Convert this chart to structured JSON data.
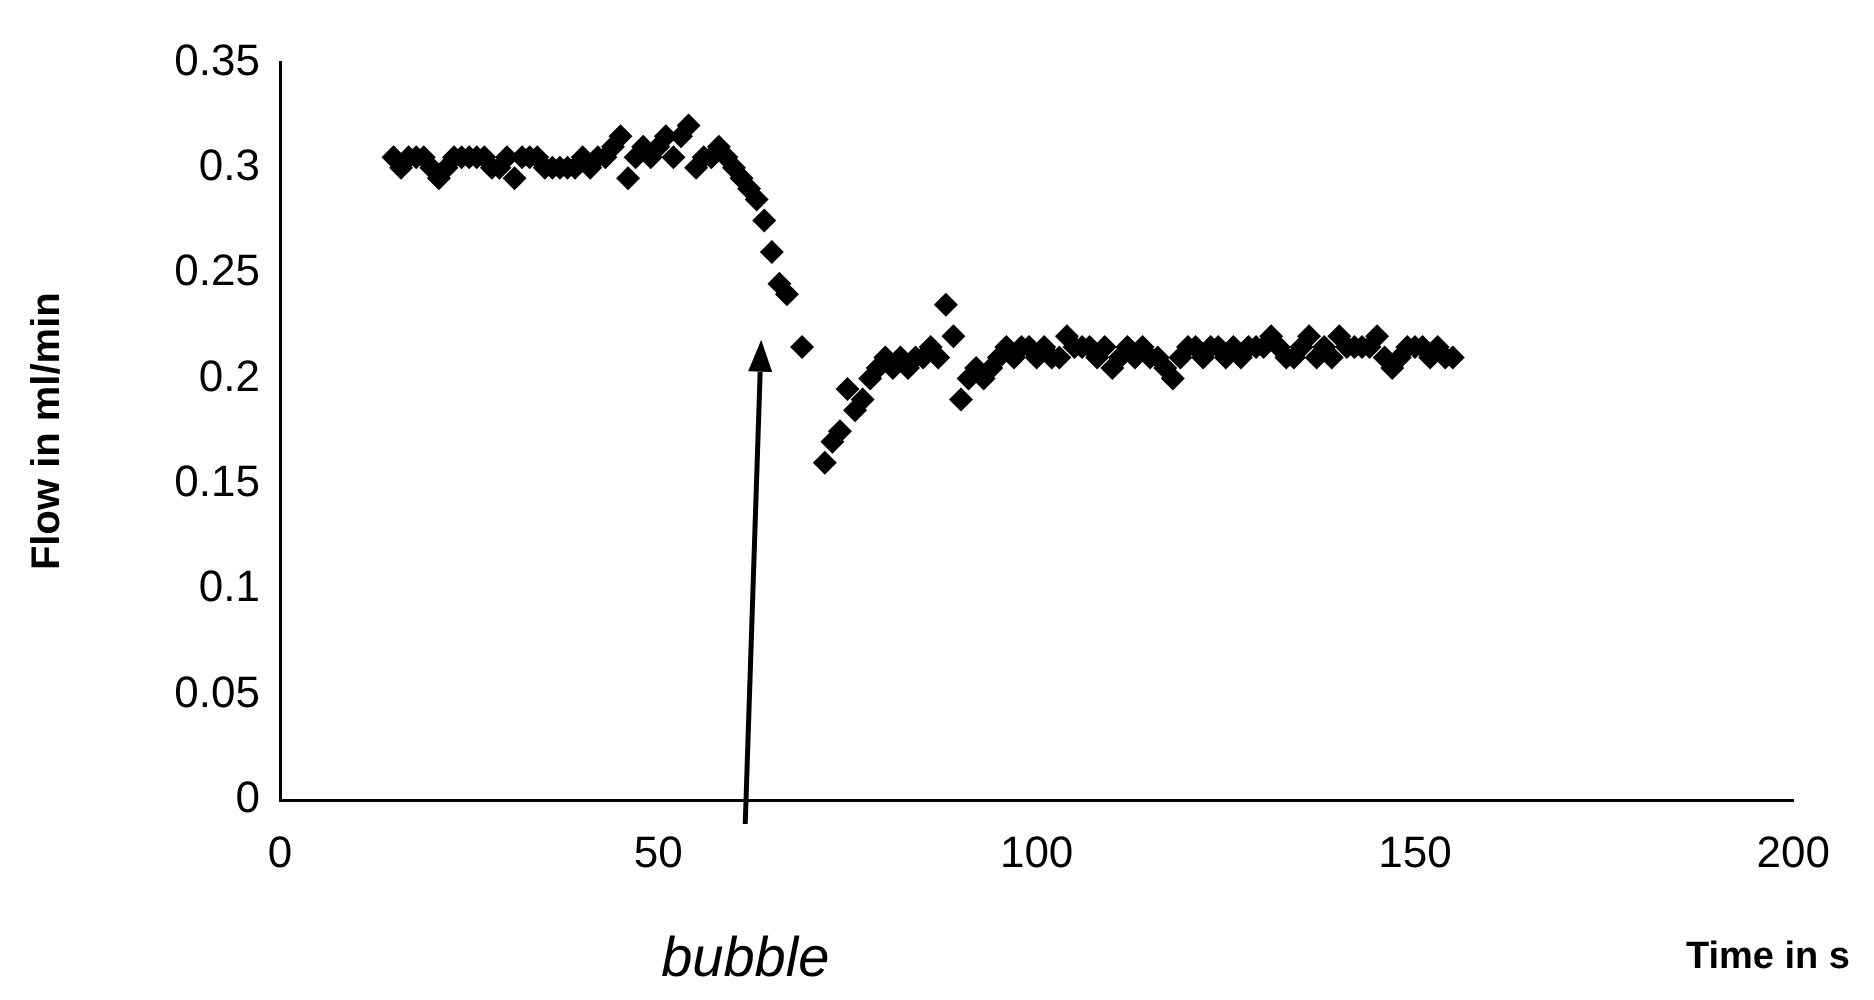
{
  "chart_data": {
    "type": "scatter",
    "xlabel": "Time in s",
    "ylabel": "Flow in ml/min",
    "marker": "diamond",
    "grid": false,
    "legend": false,
    "xlim": [
      0,
      200
    ],
    "xticks": [
      0,
      50,
      100,
      150,
      200
    ],
    "ylim": [
      0,
      0.35
    ],
    "yticks": [
      0,
      0.05,
      0.1,
      0.15,
      0.2,
      0.25,
      0.3,
      0.35
    ],
    "annotations": [
      "bubble"
    ],
    "series": [
      {
        "color": "#000000",
        "x": [
          15,
          16,
          17,
          18,
          19,
          20,
          21,
          22,
          23,
          24,
          25,
          26,
          27,
          28,
          29,
          30,
          31,
          32,
          33,
          34,
          35,
          36,
          37,
          38,
          39,
          40,
          41,
          42,
          43,
          44,
          45,
          46,
          47,
          48,
          49,
          50,
          51,
          52,
          53,
          54,
          55,
          56,
          57,
          58,
          59,
          60,
          61,
          62,
          63,
          64,
          65,
          66,
          67,
          69,
          72,
          73,
          74,
          75,
          76,
          77,
          78,
          79,
          80,
          81,
          82,
          83,
          84,
          85,
          86,
          87,
          88,
          89,
          90,
          91,
          92,
          93,
          94,
          95,
          96,
          97,
          98,
          99,
          100,
          101,
          102,
          103,
          104,
          105,
          106,
          107,
          108,
          109,
          110,
          111,
          112,
          113,
          114,
          115,
          116,
          117,
          118,
          119,
          120,
          121,
          122,
          123,
          124,
          125,
          126,
          127,
          128,
          129,
          130,
          131,
          132,
          133,
          134,
          135,
          136,
          137,
          138,
          139,
          140,
          141,
          142,
          143,
          144,
          145,
          146,
          147,
          148,
          149,
          150,
          151,
          152,
          153,
          154,
          155
        ],
        "values": [
          0.305,
          0.3,
          0.305,
          0.305,
          0.305,
          0.3,
          0.295,
          0.3,
          0.305,
          0.305,
          0.305,
          0.305,
          0.305,
          0.3,
          0.3,
          0.305,
          0.295,
          0.305,
          0.305,
          0.305,
          0.3,
          0.3,
          0.3,
          0.3,
          0.3,
          0.305,
          0.3,
          0.305,
          0.305,
          0.31,
          0.315,
          0.295,
          0.305,
          0.31,
          0.305,
          0.31,
          0.315,
          0.305,
          0.315,
          0.32,
          0.3,
          0.305,
          0.305,
          0.31,
          0.305,
          0.3,
          0.295,
          0.29,
          0.285,
          0.275,
          0.26,
          0.245,
          0.24,
          0.215,
          0.16,
          0.17,
          0.175,
          0.195,
          0.185,
          0.19,
          0.2,
          0.205,
          0.21,
          0.205,
          0.21,
          0.205,
          0.21,
          0.21,
          0.215,
          0.21,
          0.235,
          0.22,
          0.19,
          0.2,
          0.205,
          0.2,
          0.205,
          0.21,
          0.215,
          0.21,
          0.215,
          0.215,
          0.21,
          0.215,
          0.21,
          0.21,
          0.22,
          0.215,
          0.215,
          0.215,
          0.21,
          0.215,
          0.205,
          0.21,
          0.215,
          0.21,
          0.215,
          0.21,
          0.21,
          0.205,
          0.2,
          0.21,
          0.215,
          0.215,
          0.21,
          0.215,
          0.215,
          0.21,
          0.215,
          0.21,
          0.215,
          0.215,
          0.215,
          0.22,
          0.215,
          0.21,
          0.21,
          0.215,
          0.22,
          0.21,
          0.215,
          0.21,
          0.22,
          0.215,
          0.215,
          0.215,
          0.215,
          0.22,
          0.21,
          0.205,
          0.21,
          0.215,
          0.215,
          0.215,
          0.21,
          0.215,
          0.21,
          0.21
        ]
      }
    ]
  }
}
